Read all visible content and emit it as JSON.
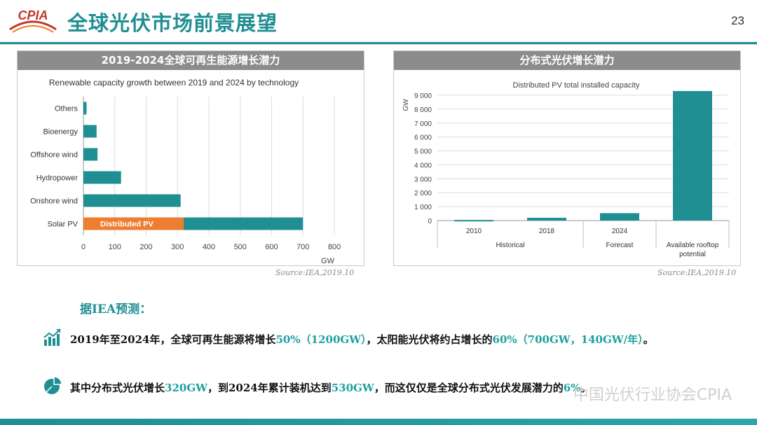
{
  "header": {
    "logo_text": "CPIA",
    "title": "全球光伏市场前景展望",
    "page_number": "23"
  },
  "left_panel": {
    "header": "2019-2024全球可再生能源增长潜力",
    "source": "Source:IEA,2019.10"
  },
  "right_panel": {
    "header": "分布式光伏增长潜力",
    "source": "Source:IEA,2019.10"
  },
  "chart_data": [
    {
      "type": "bar",
      "orientation": "horizontal",
      "title": "Renewable capacity growth between 2019 and 2024 by technology",
      "xlabel": "GW",
      "xlim": [
        0,
        800
      ],
      "xticks": [
        0,
        100,
        200,
        300,
        400,
        500,
        600,
        700,
        800
      ],
      "categories": [
        "Others",
        "Bioenergy",
        "Offshore wind",
        "Hydropower",
        "Onshore wind",
        "Solar PV"
      ],
      "values": [
        10,
        42,
        45,
        120,
        310,
        700
      ],
      "annotation": {
        "category": "Solar PV",
        "label": "Distributed PV",
        "value": 320,
        "color": "#ed7d31"
      },
      "bar_color": "#1f8f93",
      "grid": true
    },
    {
      "type": "bar",
      "title": "Distributed PV total installed capacity",
      "ylabel": "GW",
      "ylim": [
        0,
        9000
      ],
      "yticks": [
        0,
        1000,
        2000,
        3000,
        4000,
        5000,
        6000,
        7000,
        8000,
        9000
      ],
      "ytick_labels": [
        "0",
        "1 000",
        "2 000",
        "3 000",
        "4 000",
        "5 000",
        "6 000",
        "7 000",
        "8 000",
        "9 000"
      ],
      "categories": [
        "2010",
        "2018",
        "2024",
        ""
      ],
      "values": [
        40,
        200,
        530,
        9300
      ],
      "groups": [
        {
          "label": "Historical",
          "span": [
            0,
            1
          ]
        },
        {
          "label": "Forecast",
          "span": [
            2,
            2
          ]
        },
        {
          "label": "Available rooftop\npotential",
          "span": [
            3,
            3
          ]
        }
      ],
      "bar_color": "#1f8f93",
      "grid": true
    }
  ],
  "prediction": {
    "title": "据IEA预测：",
    "bullet1": {
      "t1": "2019年至2024年，全球可再生能源将增长",
      "h1": "50%（1200GW）",
      "t2": "，太阳能光伏将约占增长的",
      "h2": "60%（700GW，140GW/年）",
      "t3": "。"
    },
    "bullet2": {
      "t1": "其中分布式光伏增长",
      "h1": "320GW",
      "t2": "，到2024年累计装机达到",
      "h2": "530GW",
      "t3": "，而这仅仅是全球分布式光伏发展潜力的",
      "h3": "6%",
      "t4": "。"
    }
  },
  "watermark": "中国光伏行业协会CPIA",
  "colors": {
    "teal": "#1f8f93",
    "orange": "#ed7d31",
    "header_gray": "#8c8c8c"
  }
}
